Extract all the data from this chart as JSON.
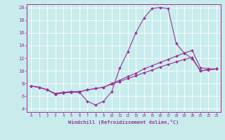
{
  "xlabel": "Windchill (Refroidissement éolien,°C)",
  "bg_color": "#c8ecec",
  "grid_color": "#ffffff",
  "line_color": "#993399",
  "xlim": [
    -0.5,
    23.5
  ],
  "ylim": [
    3.5,
    20.5
  ],
  "yticks": [
    4,
    6,
    8,
    10,
    12,
    14,
    16,
    18,
    20
  ],
  "xticks": [
    0,
    1,
    2,
    3,
    4,
    5,
    6,
    7,
    8,
    9,
    10,
    11,
    12,
    13,
    14,
    15,
    16,
    17,
    18,
    19,
    20,
    21,
    22,
    23
  ],
  "series": [
    {
      "x": [
        0,
        1,
        2,
        3,
        4,
        5,
        6,
        7,
        8,
        9,
        10,
        11,
        12,
        13,
        14,
        15,
        16,
        17,
        18,
        19,
        20,
        21,
        22,
        23
      ],
      "y": [
        7.6,
        7.4,
        7.0,
        6.3,
        6.5,
        6.6,
        6.6,
        5.2,
        4.6,
        5.2,
        6.7,
        10.4,
        13.0,
        16.0,
        18.3,
        19.8,
        20.0,
        19.8,
        14.3,
        12.8,
        11.9,
        10.0,
        10.2,
        10.3
      ]
    },
    {
      "x": [
        0,
        1,
        2,
        3,
        4,
        5,
        6,
        7,
        8,
        9,
        10,
        11,
        12,
        13,
        14,
        15,
        16,
        17,
        18,
        19,
        20,
        21,
        22,
        23
      ],
      "y": [
        7.6,
        7.4,
        7.0,
        6.4,
        6.6,
        6.7,
        6.7,
        7.0,
        7.2,
        7.4,
        8.0,
        8.5,
        9.1,
        9.6,
        10.3,
        10.8,
        11.3,
        11.8,
        12.3,
        12.8,
        13.2,
        10.5,
        10.3,
        10.3
      ]
    },
    {
      "x": [
        0,
        1,
        2,
        3,
        4,
        5,
        6,
        7,
        8,
        9,
        10,
        11,
        12,
        13,
        14,
        15,
        16,
        17,
        18,
        19,
        20,
        21,
        22,
        23
      ],
      "y": [
        7.6,
        7.4,
        7.0,
        6.4,
        6.6,
        6.7,
        6.7,
        7.0,
        7.2,
        7.4,
        7.9,
        8.3,
        8.8,
        9.2,
        9.7,
        10.1,
        10.6,
        11.0,
        11.4,
        11.8,
        12.1,
        10.0,
        10.1,
        10.3
      ]
    }
  ]
}
